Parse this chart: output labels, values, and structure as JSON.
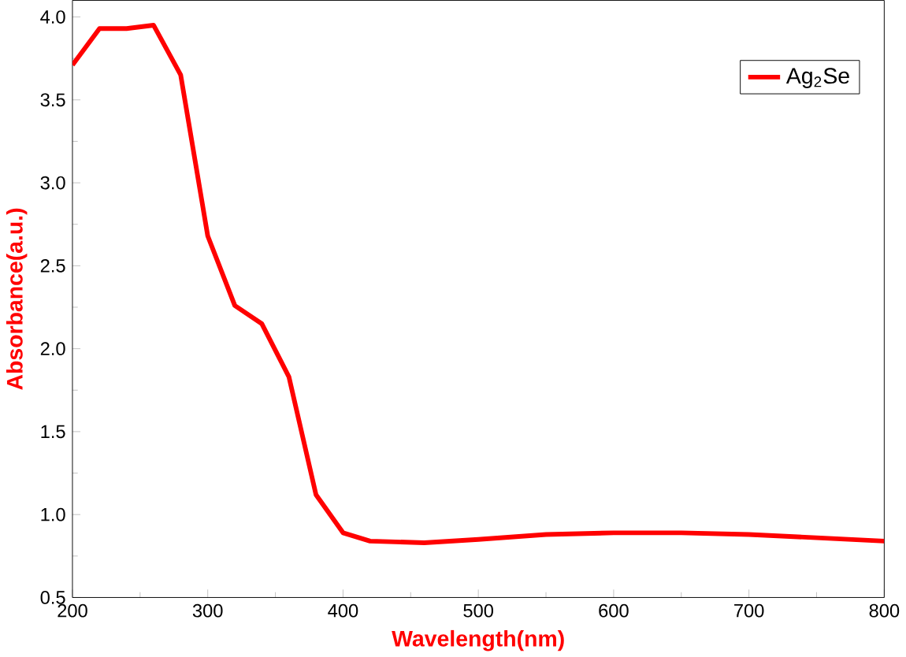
{
  "chart_data": {
    "type": "line",
    "xlabel": "Wavelength(nm)",
    "ylabel": "Absorbance(a.u.)",
    "x": [
      200,
      220,
      240,
      260,
      280,
      300,
      320,
      340,
      360,
      380,
      400,
      420,
      460,
      500,
      550,
      600,
      650,
      700,
      750,
      800
    ],
    "series": [
      {
        "name": "Ag$_{2}$Se",
        "color": "#ff0000",
        "values": [
          3.71,
          3.93,
          3.93,
          3.95,
          3.65,
          2.68,
          2.26,
          2.15,
          1.83,
          1.12,
          0.89,
          0.84,
          0.83,
          0.85,
          0.88,
          0.89,
          0.89,
          0.88,
          0.86,
          0.84
        ]
      }
    ],
    "xlim": [
      200,
      800
    ],
    "ylim": [
      0.5,
      4.1
    ],
    "xticks": [
      200,
      300,
      400,
      500,
      600,
      700,
      800
    ],
    "yticks": [
      {
        "value": 0.5,
        "label": "0.5"
      },
      {
        "value": 1.0,
        "label": "1.0"
      },
      {
        "value": 1.5,
        "label": "1.5"
      },
      {
        "value": 2.0,
        "label": "2.0"
      },
      {
        "value": 2.5,
        "label": "2.5"
      },
      {
        "value": 3.0,
        "label": "3.0"
      },
      {
        "value": 3.5,
        "label": "3.5"
      },
      {
        "value": 4.0,
        "label": "4.0"
      }
    ],
    "legend": "top right",
    "grid": false,
    "marker": "none",
    "line_style": "solid"
  }
}
